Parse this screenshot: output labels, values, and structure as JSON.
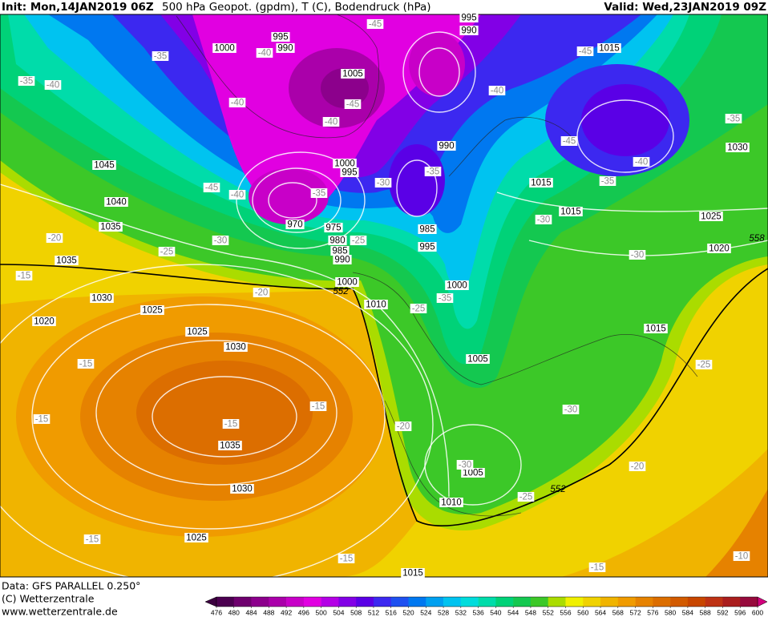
{
  "header": {
    "init": "Init: Mon,14JAN2019 06Z",
    "title": "500 hPa Geopot. (gpdm), T (C), Bodendruck (hPa)",
    "valid": "Valid: Wed,23JAN2019 09Z"
  },
  "footer": {
    "data": "Data: GFS PARALLEL 0.250°",
    "copyright": "(C) Wetterzentrale",
    "url": "www.wetterzentrale.de"
  },
  "isobar_labels": [
    "995",
    "990",
    "1000",
    "995",
    "990",
    "1015",
    "1005",
    "1030",
    "1045",
    "1000",
    "995",
    "990",
    "1015",
    "1040",
    "970",
    "975",
    "985",
    "1015",
    "1025",
    "1035",
    "980",
    "985",
    "990",
    "995",
    "1035",
    "1020",
    "1000",
    "1000",
    "1030",
    "1010",
    "1025",
    "1020",
    "1015",
    "1025",
    "1030",
    "1005",
    "1035",
    "1005",
    "1030",
    "1010",
    "1025",
    "1015"
  ],
  "temperature_labels": [
    "-45",
    "-35",
    "-40",
    "-45",
    "-35",
    "-40",
    "-40",
    "-45",
    "-40",
    "-40",
    "-35",
    "-45",
    "-40",
    "-35",
    "-30",
    "-45",
    "-40",
    "-35",
    "-35",
    "-30",
    "-25",
    "-20",
    "-30",
    "-25",
    "-30",
    "-15",
    "-20",
    "-35",
    "-25",
    "-15",
    "-25",
    "-15",
    "-15",
    "-30",
    "-15",
    "-20",
    "-30",
    "-20",
    "-25",
    "-15",
    "-15",
    "-15",
    "-10"
  ],
  "geopotential_labels": [
    "552",
    "558",
    "552"
  ],
  "colorbar": {
    "ticks": [
      476,
      480,
      484,
      488,
      492,
      496,
      500,
      504,
      508,
      512,
      516,
      520,
      524,
      528,
      532,
      536,
      540,
      544,
      548,
      552,
      556,
      560,
      564,
      568,
      572,
      576,
      580,
      584,
      588,
      592,
      596,
      600
    ],
    "colors": [
      "#4b0050",
      "#6e006e",
      "#8c008c",
      "#aa00aa",
      "#c800c8",
      "#e100e1",
      "#b400e6",
      "#8200e6",
      "#5a00e6",
      "#3c28f0",
      "#1e50f0",
      "#0078f0",
      "#00a0f0",
      "#00c3f0",
      "#00dcdc",
      "#00dcaa",
      "#00d278",
      "#14c850",
      "#3cc828",
      "#aadc00",
      "#f0f000",
      "#f0d200",
      "#f0b400",
      "#f09b00",
      "#e68200",
      "#dc6e00",
      "#d25a00",
      "#c84600",
      "#be3214",
      "#aa1e1e",
      "#960a3c"
    ],
    "under_color": "#3c0040",
    "over_color": "#d2007d"
  }
}
